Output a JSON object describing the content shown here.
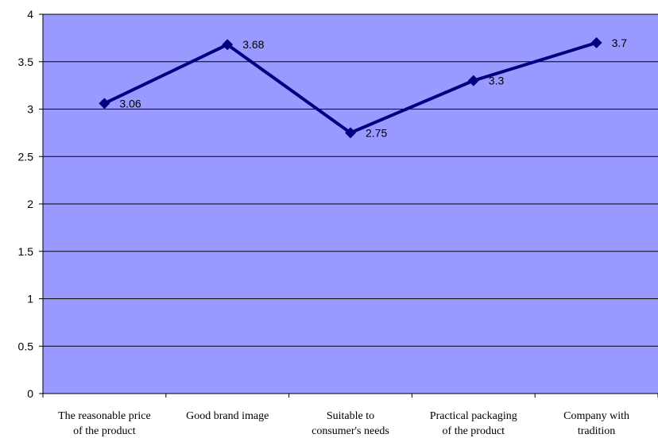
{
  "chart_data": {
    "type": "line",
    "title": "",
    "xlabel": "",
    "ylabel": "",
    "ylim": [
      0,
      4
    ],
    "yticks": [
      "0",
      "0.5",
      "1",
      "1.5",
      "2",
      "2.5",
      "3",
      "3.5",
      "4"
    ],
    "categories": [
      [
        "The reasonable price",
        "of the product"
      ],
      [
        "Good brand image"
      ],
      [
        "Suitable to",
        "consumer's needs"
      ],
      [
        "Practical packaging",
        "of the product"
      ],
      [
        "Company with",
        "tradition"
      ]
    ],
    "series": [
      {
        "values": [
          3.06,
          3.68,
          2.75,
          3.3,
          3.7
        ],
        "labels": [
          "3.06",
          "3.68",
          "2.75",
          "3.3",
          "3.7"
        ]
      }
    ],
    "grid": true,
    "legend": "none",
    "colors": {
      "plot_background": "#9999ff",
      "line": "#000080",
      "gridline": "#000000"
    }
  }
}
